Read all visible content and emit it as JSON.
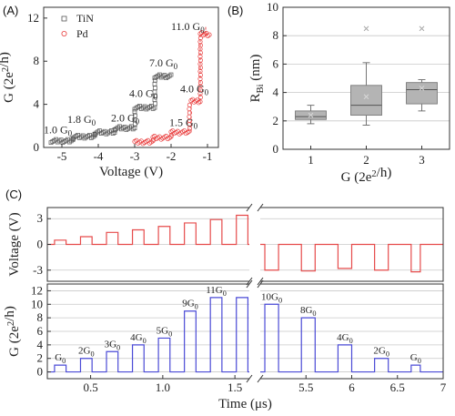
{
  "panels": {
    "a": {
      "label": "(A)"
    },
    "b": {
      "label": "(B)"
    },
    "c": {
      "label": "(C)"
    }
  },
  "chart_data": [
    {
      "id": "A",
      "type": "scatter",
      "xlabel": "Voltage (V)",
      "ylabel": "G (2e²/h)",
      "xlim": [
        -5.5,
        -0.7
      ],
      "ylim": [
        0,
        13
      ],
      "xticks": [
        -5,
        -4,
        -3,
        -2,
        -1
      ],
      "yticks": [
        0,
        4,
        8,
        12
      ],
      "legend_position": "top-left",
      "series": [
        {
          "name": "TiN",
          "marker": "square",
          "color": "#555555",
          "steps": [
            {
              "x0": -5.3,
              "x1": -4.7,
              "g": 0.6
            },
            {
              "x0": -4.7,
              "x1": -4.1,
              "g": 1.0
            },
            {
              "x0": -4.1,
              "x1": -3.55,
              "g": 1.4
            },
            {
              "x0": -3.55,
              "x1": -3.0,
              "g": 1.8
            },
            {
              "x0": -3.0,
              "x1": -2.45,
              "g": 3.7
            },
            {
              "x0": -2.45,
              "x1": -2.0,
              "g": 6.6
            }
          ],
          "risers": [
            -4.7,
            -4.1,
            -3.55,
            -3.0,
            -2.45
          ]
        },
        {
          "name": "Pd",
          "marker": "circle",
          "color": "#e83a3a",
          "steps": [
            {
              "x0": -3.0,
              "x1": -2.5,
              "g": 0.5
            },
            {
              "x0": -2.5,
              "x1": -2.0,
              "g": 0.9
            },
            {
              "x0": -2.0,
              "x1": -1.5,
              "g": 1.4
            },
            {
              "x0": -1.45,
              "x1": -1.2,
              "g": 4.3
            },
            {
              "x0": -1.2,
              "x1": -0.95,
              "g": 10.5
            }
          ],
          "risers": [
            -2.5,
            -2.0,
            -1.5,
            -1.2
          ]
        }
      ],
      "annotations": [
        {
          "text": "1.0 G₀",
          "x": -5.5,
          "y": 1.3
        },
        {
          "text": "1.8 G₀",
          "x": -4.85,
          "y": 2.3
        },
        {
          "text": "2.0 G₀",
          "x": -3.65,
          "y": 2.4
        },
        {
          "text": "4.0 G₀",
          "x": -3.15,
          "y": 4.7
        },
        {
          "text": "7.0 G₀",
          "x": -2.6,
          "y": 7.5
        },
        {
          "text": "1.5 G₀",
          "x": -2.05,
          "y": 2.0
        },
        {
          "text": "4.0 G₀",
          "x": -1.75,
          "y": 5.1
        },
        {
          "text": "11.0 G₀",
          "x": -2.0,
          "y": 10.9
        }
      ]
    },
    {
      "id": "B",
      "type": "box",
      "xlabel": "G (2e²/h)",
      "ylabel": "RBi (nm)",
      "ylabel_main": "R",
      "ylabel_sub": "Bi",
      "ylim": [
        0,
        10
      ],
      "yticks": [
        0,
        2,
        4,
        6,
        8,
        10
      ],
      "categories": [
        "1",
        "2",
        "3"
      ],
      "grid": true,
      "boxes": [
        {
          "category": "1",
          "whisker_low": 1.8,
          "q1": 2.1,
          "median": 2.3,
          "q3": 2.7,
          "whisker_high": 3.1,
          "mean": 2.4,
          "outliers": []
        },
        {
          "category": "2",
          "whisker_low": 1.7,
          "q1": 2.4,
          "median": 3.1,
          "q3": 4.5,
          "whisker_high": 6.1,
          "mean": 3.7,
          "outliers": [
            8.5
          ]
        },
        {
          "category": "3",
          "whisker_low": 2.7,
          "q1": 3.2,
          "median": 4.2,
          "q3": 4.7,
          "whisker_high": 4.9,
          "mean": 4.3,
          "outliers": [
            8.5
          ]
        }
      ]
    },
    {
      "id": "C-top",
      "type": "line",
      "ylabel": "Voltage (V)",
      "ylim": [
        -4.3,
        4.3
      ],
      "yticks": [
        -3,
        0,
        3
      ],
      "grid": true,
      "color": "#e64b4b",
      "segment_1": {
        "x_start": 0.2,
        "x_end": 1.6,
        "baseline": 0,
        "pulses": [
          {
            "t0": 0.25,
            "t1": 0.33,
            "v": 0.5
          },
          {
            "t0": 0.43,
            "t1": 0.51,
            "v": 0.9
          },
          {
            "t0": 0.61,
            "t1": 0.69,
            "v": 1.4
          },
          {
            "t0": 0.79,
            "t1": 0.87,
            "v": 1.7
          },
          {
            "t0": 0.97,
            "t1": 1.05,
            "v": 2.1
          },
          {
            "t0": 1.15,
            "t1": 1.23,
            "v": 2.5
          },
          {
            "t0": 1.33,
            "t1": 1.41,
            "v": 2.9
          },
          {
            "t0": 1.51,
            "t1": 1.59,
            "v": 3.4
          }
        ]
      },
      "segment_2": {
        "x_start": 5.0,
        "x_end": 7.0,
        "baseline": 0,
        "pulses": [
          {
            "t0": 5.05,
            "t1": 5.2,
            "v": -3.0
          },
          {
            "t0": 5.45,
            "t1": 5.6,
            "v": -3.1
          },
          {
            "t0": 5.85,
            "t1": 6.0,
            "v": -2.8
          },
          {
            "t0": 6.25,
            "t1": 6.4,
            "v": -3.0
          },
          {
            "t0": 6.65,
            "t1": 6.75,
            "v": -3.2
          }
        ]
      }
    },
    {
      "id": "C-bottom",
      "type": "line",
      "xlabel": "Time (μs)",
      "ylabel": "G (2e²/h)",
      "ylim": [
        -1,
        13
      ],
      "yticks": [
        0,
        2,
        4,
        6,
        8,
        10,
        12
      ],
      "xticks_segment_1": [
        0.5,
        1.0,
        1.5
      ],
      "xticks_segment_2": [
        5.5,
        6,
        6.5,
        7
      ],
      "xticklabels_segment_1": [
        "0.5",
        "1.0",
        "1.5"
      ],
      "xticklabels_segment_2": [
        "5.5",
        "6",
        "6.5",
        "7"
      ],
      "grid": true,
      "color": "#4a4ad6",
      "segment_1": {
        "x_start": 0.2,
        "x_end": 1.6,
        "baseline": 0,
        "pulses": [
          {
            "t0": 0.25,
            "t1": 0.33,
            "g": 1,
            "label": "G₀"
          },
          {
            "t0": 0.43,
            "t1": 0.51,
            "g": 2,
            "label": "2G₀"
          },
          {
            "t0": 0.61,
            "t1": 0.69,
            "g": 3,
            "label": "3G₀"
          },
          {
            "t0": 0.79,
            "t1": 0.87,
            "g": 4,
            "label": "4G₀"
          },
          {
            "t0": 0.97,
            "t1": 1.05,
            "g": 5,
            "label": "5G₀"
          },
          {
            "t0": 1.15,
            "t1": 1.23,
            "g": 9,
            "label": "9G₀"
          },
          {
            "t0": 1.33,
            "t1": 1.41,
            "g": 11,
            "label": "11G₀"
          },
          {
            "t0": 1.51,
            "t1": 1.59,
            "g": 11,
            "label": ""
          }
        ]
      },
      "segment_2": {
        "x_start": 5.0,
        "x_end": 7.0,
        "baseline": 0,
        "pulses": [
          {
            "t0": 5.05,
            "t1": 5.2,
            "g": 10,
            "label": "10G₀"
          },
          {
            "t0": 5.45,
            "t1": 5.6,
            "g": 8,
            "label": "8G₀"
          },
          {
            "t0": 5.85,
            "t1": 6.0,
            "g": 4,
            "label": "4G₀"
          },
          {
            "t0": 6.25,
            "t1": 6.4,
            "g": 2,
            "label": "2G₀"
          },
          {
            "t0": 6.65,
            "t1": 6.75,
            "g": 1,
            "label": "G₀"
          }
        ]
      }
    }
  ]
}
